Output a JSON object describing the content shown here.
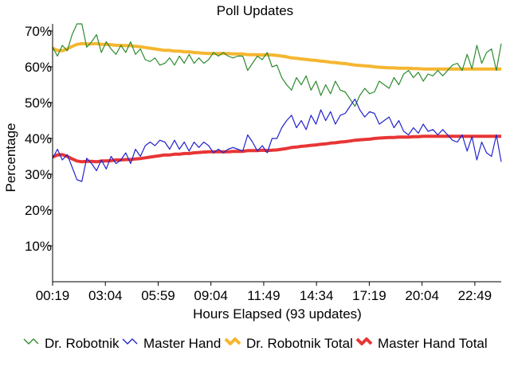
{
  "chart_data": {
    "type": "line",
    "title": "Poll Updates",
    "xlabel": "Hours Elapsed (93 updates)",
    "ylabel": "Percentage",
    "x_ticks": [
      "00:19",
      "03:04",
      "05:59",
      "09:04",
      "11:49",
      "14:34",
      "17:19",
      "20:04",
      "22:49"
    ],
    "y_ticks": [
      "10%",
      "20%",
      "30%",
      "40%",
      "50%",
      "60%",
      "70%"
    ],
    "ylim": [
      0,
      72
    ],
    "grid": false,
    "legend_position": "bottom",
    "series": [
      {
        "name": "Dr. Robotnik",
        "color": "#2e8b2e",
        "values": [
          65.5,
          63.0,
          66.0,
          64.5,
          69.0,
          72.0,
          72.0,
          65.5,
          67.0,
          69.0,
          64.0,
          67.0,
          65.0,
          63.5,
          66.0,
          64.0,
          67.0,
          63.5,
          65.0,
          62.0,
          61.5,
          62.5,
          60.5,
          61.0,
          62.5,
          60.5,
          63.0,
          61.0,
          63.5,
          61.0,
          62.5,
          61.0,
          62.0,
          64.0,
          63.0,
          64.0,
          63.0,
          62.5,
          63.0,
          63.0,
          59.0,
          61.0,
          63.0,
          62.0,
          64.0,
          60.0,
          60.5,
          57.0,
          55.0,
          53.5,
          57.0,
          55.0,
          57.5,
          53.5,
          56.0,
          52.0,
          55.0,
          52.5,
          56.0,
          53.5,
          53.0,
          51.0,
          49.0,
          52.0,
          54.0,
          52.5,
          53.0,
          56.0,
          55.0,
          54.0,
          57.0,
          55.0,
          58.0,
          59.0,
          57.0,
          58.5,
          56.0,
          58.0,
          57.5,
          59.0,
          57.5,
          59.0,
          60.5,
          61.0,
          59.0,
          63.5,
          59.5,
          66.0,
          61.0,
          64.0,
          65.0,
          59.0,
          66.5
        ]
      },
      {
        "name": "Master Hand",
        "color": "#2323cc",
        "values": [
          34.5,
          37.0,
          34.0,
          35.5,
          32.0,
          28.5,
          28.0,
          34.5,
          33.0,
          31.0,
          34.0,
          31.5,
          35.0,
          33.0,
          34.0,
          36.0,
          33.0,
          37.0,
          35.0,
          38.0,
          39.0,
          38.0,
          39.5,
          39.0,
          37.0,
          39.5,
          37.0,
          39.0,
          36.5,
          39.0,
          37.5,
          39.0,
          38.0,
          36.0,
          37.0,
          36.0,
          37.0,
          37.5,
          37.0,
          36.5,
          41.0,
          39.0,
          36.5,
          38.0,
          36.0,
          40.0,
          40.0,
          43.0,
          45.0,
          46.5,
          43.0,
          45.0,
          42.5,
          46.5,
          44.0,
          48.0,
          45.0,
          47.5,
          44.0,
          46.5,
          47.0,
          49.0,
          51.0,
          48.0,
          46.0,
          47.5,
          47.0,
          44.0,
          45.0,
          46.0,
          43.0,
          45.0,
          42.0,
          41.0,
          43.0,
          41.5,
          44.0,
          42.0,
          42.5,
          41.0,
          42.5,
          41.0,
          39.5,
          39.0,
          41.0,
          36.5,
          40.5,
          34.0,
          39.0,
          36.0,
          35.0,
          41.0,
          33.5
        ]
      },
      {
        "name": "Dr. Robotnik Total",
        "color": "#f5b630",
        "values": [
          65.2,
          64.6,
          64.5,
          65.0,
          65.7,
          66.3,
          66.5,
          66.4,
          66.4,
          66.5,
          66.3,
          66.3,
          66.2,
          66.0,
          66.0,
          65.9,
          65.9,
          65.7,
          65.6,
          65.4,
          65.2,
          65.0,
          64.8,
          64.6,
          64.6,
          64.4,
          64.4,
          64.2,
          64.2,
          64.0,
          63.9,
          63.8,
          63.7,
          63.7,
          63.7,
          63.7,
          63.7,
          63.6,
          63.6,
          63.6,
          63.4,
          63.4,
          63.4,
          63.3,
          63.4,
          63.3,
          63.2,
          63.0,
          62.8,
          62.5,
          62.4,
          62.2,
          62.1,
          61.9,
          61.8,
          61.6,
          61.5,
          61.3,
          61.2,
          61.0,
          60.9,
          60.7,
          60.5,
          60.4,
          60.3,
          60.2,
          60.0,
          59.9,
          59.8,
          59.7,
          59.7,
          59.6,
          59.6,
          59.6,
          59.5,
          59.5,
          59.4,
          59.4,
          59.4,
          59.4,
          59.4,
          59.4,
          59.4,
          59.4,
          59.4,
          59.4,
          59.4,
          59.4,
          59.4,
          59.4,
          59.4,
          59.4,
          59.4
        ]
      },
      {
        "name": "Master Hand Total",
        "color": "#e83535",
        "values": [
          34.8,
          35.4,
          35.5,
          35.0,
          34.3,
          33.7,
          33.5,
          33.6,
          33.6,
          33.5,
          33.7,
          33.7,
          33.8,
          34.0,
          34.0,
          34.1,
          34.1,
          34.3,
          34.4,
          34.6,
          34.8,
          35.0,
          35.2,
          35.4,
          35.4,
          35.6,
          35.6,
          35.8,
          35.8,
          36.0,
          36.1,
          36.2,
          36.3,
          36.3,
          36.3,
          36.3,
          36.3,
          36.4,
          36.4,
          36.4,
          36.6,
          36.6,
          36.6,
          36.7,
          36.6,
          36.7,
          36.8,
          37.0,
          37.2,
          37.5,
          37.6,
          37.8,
          37.9,
          38.1,
          38.2,
          38.4,
          38.5,
          38.7,
          38.8,
          39.0,
          39.1,
          39.3,
          39.5,
          39.6,
          39.7,
          39.8,
          40.0,
          40.1,
          40.2,
          40.3,
          40.3,
          40.4,
          40.4,
          40.4,
          40.5,
          40.5,
          40.6,
          40.6,
          40.6,
          40.6,
          40.6,
          40.6,
          40.6,
          40.6,
          40.6,
          40.6,
          40.6,
          40.6,
          40.6,
          40.6,
          40.6,
          40.6,
          40.6
        ]
      }
    ]
  }
}
